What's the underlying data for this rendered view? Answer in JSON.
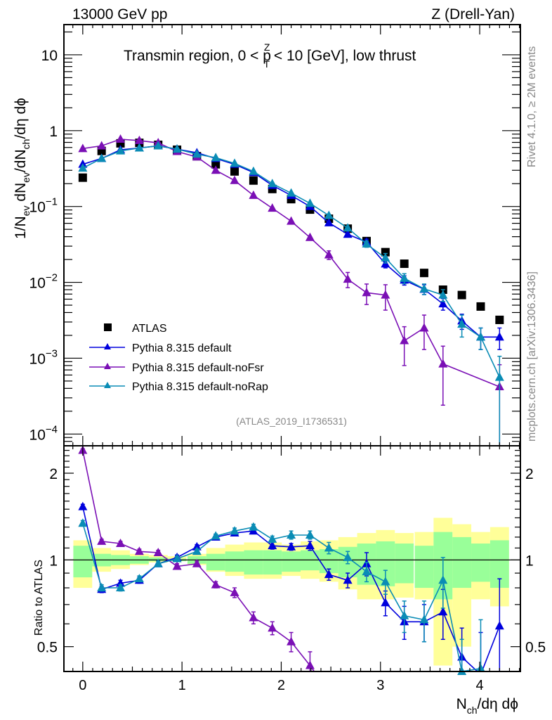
{
  "header": {
    "left": "13000 GeV pp",
    "right": "Z (Drell-Yan)"
  },
  "side_text": {
    "rivet": "Rivet 4.1.0, ≥ 2M events",
    "mcplots": "mcplots.cern.ch [arXiv:1306.3436]"
  },
  "chart_data": [
    {
      "type": "line",
      "panel": "main",
      "title": "Transmin region, 0 < p_T^Z < 10 [GeV], low thrust",
      "title_parts": {
        "pre": "Transmin region, 0 < p",
        "sup": "Z",
        "sub": "T",
        "post": " < 10 [GeV], low thrust"
      },
      "ylabel": "1/N_ev dN_ev/dN_ch/dη dϕ",
      "ylabel_parts": [
        "1/N",
        "ev",
        " dN",
        "ev",
        "/dN",
        "ch",
        "/dη dϕ"
      ],
      "yscale": "log",
      "ylim": [
        7e-05,
        25
      ],
      "xlim": [
        -0.19,
        4.41
      ],
      "yticks": [
        {
          "value": 10,
          "label": "10"
        },
        {
          "value": 1,
          "label": "1"
        },
        {
          "value": 0.1,
          "base": "10",
          "exp": "−1"
        },
        {
          "value": 0.01,
          "base": "10",
          "exp": "−2"
        },
        {
          "value": 0.001,
          "base": "10",
          "exp": "−3"
        },
        {
          "value": 0.0001,
          "base": "10",
          "exp": "−4"
        }
      ],
      "annotation": "(ATLAS_2019_I1736531)",
      "legend_position": "bottom-left",
      "x": [
        0,
        0.19,
        0.38,
        0.57,
        0.76,
        0.95,
        1.15,
        1.34,
        1.53,
        1.72,
        1.91,
        2.1,
        2.29,
        2.48,
        2.67,
        2.86,
        3.05,
        3.24,
        3.44,
        3.63,
        3.82,
        4.01,
        4.2
      ],
      "series": [
        {
          "name": "ATLAS",
          "marker": "square",
          "color": "#000000",
          "values": [
            0.24,
            0.54,
            0.68,
            0.69,
            0.65,
            0.56,
            0.46,
            0.36,
            0.29,
            0.22,
            0.17,
            0.125,
            0.091,
            0.069,
            0.051,
            0.035,
            0.025,
            0.0176,
            0.0133,
            0.008,
            0.0068,
            0.0048,
            0.0032
          ]
        },
        {
          "name": "Pythia 8.315 default",
          "marker": "triangle",
          "color": "#0000dd",
          "values": [
            0.36,
            0.43,
            0.56,
            0.59,
            0.63,
            0.57,
            0.51,
            0.43,
            0.36,
            0.28,
            0.19,
            0.14,
            0.1,
            0.061,
            0.043,
            0.034,
            0.0175,
            0.0107,
            0.0081,
            0.0052,
            0.0031,
            0.0019,
            0.0019
          ],
          "errors": [
            0,
            0,
            0,
            0,
            0,
            0,
            0,
            0,
            0,
            0,
            0,
            0,
            0,
            0,
            0,
            0.003,
            0.002,
            0.0015,
            0.0012,
            0.0009,
            0.0007,
            0.0006,
            0.0006
          ]
        },
        {
          "name": "Pythia 8.315 default-noFsr",
          "marker": "triangle",
          "color": "#7a0fb5",
          "values": [
            0.58,
            0.63,
            0.77,
            0.74,
            0.69,
            0.53,
            0.45,
            0.3,
            0.22,
            0.14,
            0.095,
            0.064,
            0.039,
            0.023,
            0.011,
            0.0073,
            0.0068,
            0.0017,
            0.0025,
            0.00084,
            null,
            null,
            0.00042
          ],
          "errors": [
            0,
            0,
            0,
            0,
            0,
            0,
            0,
            0,
            0,
            0,
            0,
            0,
            0,
            0.003,
            0.0025,
            0.0022,
            0.0025,
            0.0009,
            0.0012,
            0.0006,
            0,
            0,
            0.0004
          ]
        },
        {
          "name": "Pythia 8.315 default-noRap",
          "marker": "triangle",
          "color": "#0a8cb5",
          "values": [
            0.32,
            0.43,
            0.54,
            0.59,
            0.63,
            0.57,
            0.49,
            0.44,
            0.37,
            0.29,
            0.2,
            0.15,
            0.11,
            0.076,
            0.052,
            0.032,
            0.021,
            0.0113,
            0.0082,
            0.0068,
            0.0028,
            0.0019,
            0.00056
          ],
          "errors": [
            0,
            0,
            0,
            0,
            0,
            0,
            0,
            0,
            0,
            0,
            0,
            0,
            0,
            0,
            0,
            0.003,
            0.003,
            0.0017,
            0.0013,
            0.0012,
            0.0009,
            0.0006,
            0.0005
          ]
        }
      ]
    },
    {
      "type": "line",
      "panel": "ratio",
      "ylabel": "Ratio to ATLAS",
      "xlabel_parts": [
        "N",
        "ch",
        "/dη dϕ"
      ],
      "yscale": "log",
      "ylim": [
        0.41,
        2.49
      ],
      "xlim": [
        -0.19,
        4.41
      ],
      "xticks": [
        0,
        1,
        2,
        3,
        4
      ],
      "yticks": [
        {
          "value": 2,
          "label": "2"
        },
        {
          "value": 1,
          "label": "1"
        },
        {
          "value": 0.5,
          "label": "0.5"
        }
      ],
      "x": [
        0,
        0.19,
        0.38,
        0.57,
        0.76,
        0.95,
        1.15,
        1.34,
        1.53,
        1.72,
        1.91,
        2.1,
        2.29,
        2.48,
        2.67,
        2.86,
        3.05,
        3.24,
        3.44,
        3.63,
        3.82,
        4.01,
        4.2
      ],
      "band_stat": {
        "color": "#99ff99",
        "lo": [
          0.87,
          0.95,
          0.96,
          0.97,
          0.99,
          0.99,
          0.97,
          0.92,
          0.91,
          0.89,
          0.89,
          0.91,
          0.92,
          0.9,
          0.87,
          0.82,
          0.81,
          0.83,
          0.8,
          0.73,
          0.8,
          0.84,
          0.8
        ],
        "hi": [
          1.12,
          1.05,
          1.04,
          1.03,
          1.02,
          1.01,
          1.03,
          1.05,
          1.07,
          1.08,
          1.08,
          1.07,
          1.08,
          1.09,
          1.11,
          1.14,
          1.16,
          1.14,
          1.12,
          1.25,
          1.2,
          1.14,
          1.17
        ]
      },
      "band_total": {
        "color": "#ffff99",
        "lo": [
          0.8,
          0.91,
          0.93,
          0.96,
          0.98,
          0.99,
          0.96,
          0.91,
          0.88,
          0.86,
          0.86,
          0.88,
          0.86,
          0.84,
          0.79,
          0.73,
          0.73,
          0.74,
          0.73,
          0.43,
          0.5,
          0.73,
          0.69
        ],
        "hi": [
          1.17,
          1.1,
          1.08,
          1.05,
          1.04,
          1.03,
          1.05,
          1.1,
          1.13,
          1.15,
          1.15,
          1.13,
          1.16,
          1.17,
          1.2,
          1.24,
          1.27,
          1.24,
          1.25,
          1.4,
          1.33,
          1.25,
          1.3
        ]
      },
      "series": [
        {
          "name": "Pythia 8.315 default",
          "color": "#0000dd",
          "values": [
            1.53,
            0.79,
            0.83,
            0.85,
            0.97,
            1.02,
            1.11,
            1.2,
            1.24,
            1.26,
            1.12,
            1.11,
            1.12,
            0.89,
            0.85,
            0.97,
            0.71,
            0.61,
            0.61,
            0.66,
            0.46,
            0.4,
            0.59
          ],
          "errors": [
            0.03,
            0.02,
            0.02,
            0.02,
            0.02,
            0.02,
            0.02,
            0.02,
            0.02,
            0.02,
            0.03,
            0.03,
            0.04,
            0.04,
            0.05,
            0.09,
            0.07,
            0.08,
            0.09,
            0.13,
            0.12,
            0.16,
            0.27
          ]
        },
        {
          "name": "Pythia 8.315 default-noFsr",
          "color": "#7a0fb5",
          "values": [
            2.4,
            1.16,
            1.14,
            1.07,
            1.06,
            0.95,
            0.97,
            0.82,
            0.77,
            0.63,
            0.58,
            0.52,
            0.43,
            null,
            null,
            null,
            null,
            null,
            null,
            null,
            null,
            null,
            null
          ],
          "errors": [
            0.03,
            0.02,
            0.02,
            0.02,
            0.02,
            0.02,
            0.02,
            0.02,
            0.03,
            0.03,
            0.03,
            0.04,
            0.05,
            0,
            0,
            0,
            0,
            0,
            0,
            0,
            0,
            0,
            0
          ]
        },
        {
          "name": "Pythia 8.315 default-noRap",
          "color": "#0a8cb5",
          "values": [
            1.34,
            0.8,
            0.8,
            0.86,
            0.97,
            1.01,
            1.07,
            1.21,
            1.26,
            1.3,
            1.18,
            1.22,
            1.22,
            1.1,
            1.02,
            0.91,
            0.84,
            0.64,
            0.62,
            0.85,
            0.41,
            0.42,
            null
          ],
          "errors": [
            0.03,
            0.02,
            0.02,
            0.02,
            0.02,
            0.02,
            0.02,
            0.02,
            0.03,
            0.03,
            0.03,
            0.04,
            0.04,
            0.05,
            0.05,
            0.07,
            0.08,
            0.08,
            0.1,
            0.17,
            0.12,
            0.2,
            0
          ]
        }
      ]
    }
  ]
}
